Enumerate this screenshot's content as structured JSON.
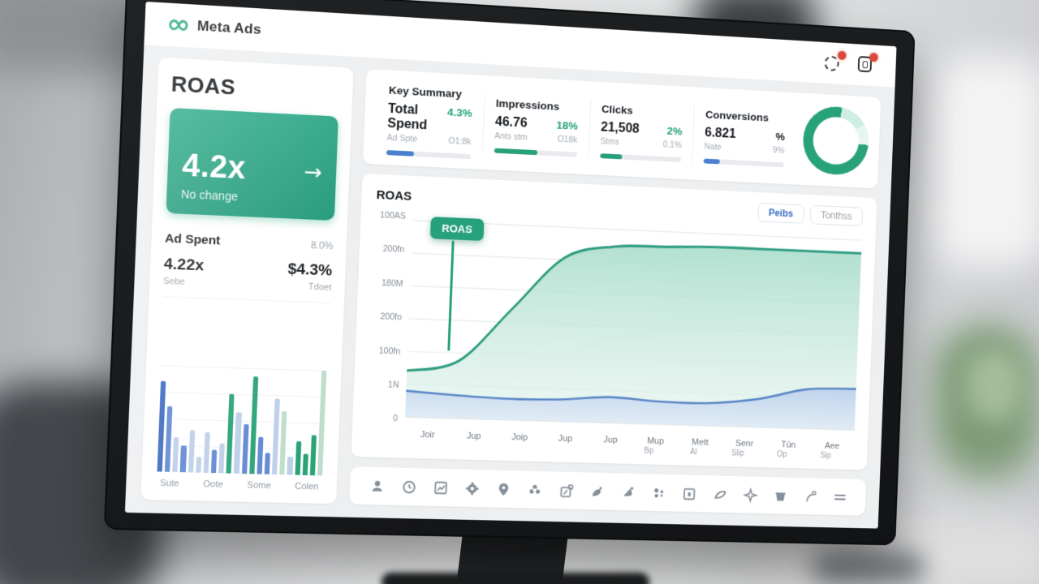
{
  "brand": {
    "name": "Meta Ads"
  },
  "header": {
    "icons": [
      {
        "name": "alerts-icon",
        "has_badge": true
      },
      {
        "name": "messages-icon",
        "has_badge": true
      }
    ]
  },
  "colors": {
    "accent_green": "#27a07c",
    "accent_blue": "#4a7fd0",
    "badge_red": "#d9473a",
    "text_dark": "#14181c",
    "text_grey": "#9aa3ad",
    "bar_palette": {
      "darkblue": "#3a68c0",
      "blue": "#6189d2",
      "paleblue": "#bdcfe9",
      "green": "#2aa376",
      "palegreen": "#bedecb"
    }
  },
  "roas_panel": {
    "title": "ROAS",
    "tile": {
      "value": "4.2x",
      "arrow": "→",
      "change_label": "No change"
    },
    "ad_spent": {
      "label": "Ad Spent",
      "pct": "8.0%",
      "left_value": "4.22x",
      "left_caption": "Sebe",
      "right_value": "$4.3%",
      "right_caption": "Tdoet"
    }
  },
  "summary": {
    "cards": [
      {
        "title": "Key Summary",
        "value": "Total Spend",
        "change": "4.3%",
        "change_color": "green",
        "sub_left": "Ad Spte",
        "sub_right": "O1:8k",
        "progress": 0.33,
        "bar_color": "blue"
      },
      {
        "title": "Impressions",
        "value": "46.76",
        "change": "18%",
        "change_color": "green",
        "sub_left": "Ants stm",
        "sub_right": "O18k",
        "progress": 0.52,
        "bar_color": "green"
      },
      {
        "title": "Clicks",
        "value": "21,508",
        "change": "2%",
        "change_color": "green",
        "sub_left": "Stms",
        "sub_right": "0.1%",
        "progress": 0.27,
        "bar_color": "green"
      },
      {
        "title": "Conversions",
        "value": "6.821",
        "change": "%",
        "change_color": "dark",
        "sub_left": "Nate",
        "sub_right": "9%",
        "progress": 0.2,
        "bar_color": "blue"
      }
    ]
  },
  "main_chart": {
    "title": "ROAS",
    "buttons": [
      "Peibs",
      "Tonthss"
    ],
    "tooltip_label": "ROAS"
  },
  "toolbar": {
    "icons": [
      "user-icon",
      "clock-icon",
      "chart-box-icon",
      "gear-icon",
      "location-pin-icon",
      "flower-icon",
      "pin-chart-icon",
      "bird-icon",
      "megaphone-icon",
      "dots-icon",
      "calendar-icon",
      "swoosh-icon",
      "sparkle-icon",
      "basket-icon",
      "hook-icon",
      "menu-icon"
    ]
  },
  "chart_data": [
    {
      "type": "area",
      "title": "ROAS",
      "x": [
        "Joir",
        "Jup",
        "Joip",
        "Jup",
        "Jup",
        "Mup",
        "Mett",
        "Senr",
        "Tún",
        "Aee"
      ],
      "x_sub": [
        "",
        "",
        "",
        "",
        "",
        "Bp",
        "Al",
        "Slip",
        "Op",
        "Sip"
      ],
      "y_ticks": [
        "100AS",
        "200fn",
        "180M",
        "200fo",
        "100fn",
        "1N",
        "0"
      ],
      "ylim": [
        0,
        100
      ],
      "grid": true,
      "legend": "none",
      "tooltip": {
        "label": "ROAS",
        "x_index": 0
      },
      "series": [
        {
          "name": "ROAS",
          "color": "#2e9c80",
          "values": [
            24,
            30,
            58,
            86,
            93,
            94,
            95,
            95,
            95,
            95
          ]
        },
        {
          "name": "secondary",
          "color": "#5b87c7",
          "values": [
            13.5,
            12,
            11,
            11.5,
            13.5,
            12,
            12,
            15,
            21,
            22
          ]
        }
      ]
    },
    {
      "type": "bar",
      "title": "Ad Spent mini chart",
      "categories": [
        "Sute",
        "Oote",
        "Some",
        "Colen"
      ],
      "ylim": [
        0,
        100
      ],
      "values": [
        85,
        62,
        33,
        25,
        40,
        15,
        38,
        22,
        28,
        75,
        58,
        47,
        92,
        35,
        20,
        72,
        60,
        17,
        32,
        20,
        38,
        100
      ],
      "bar_colors": [
        "darkblue",
        "blue",
        "paleblue",
        "blue",
        "paleblue",
        "paleblue",
        "paleblue",
        "blue",
        "paleblue",
        "green",
        "paleblue",
        "blue",
        "green",
        "blue",
        "blue",
        "paleblue",
        "palegreen",
        "paleblue",
        "green",
        "green",
        "green",
        "palegreen"
      ]
    },
    {
      "type": "pie",
      "title": "Conversions donut",
      "donut": true,
      "slices": [
        {
          "value": 76,
          "color": "#28a27b"
        },
        {
          "value": 14,
          "color": "#cdeee0"
        },
        {
          "value": 10,
          "color": "#e8f6f0"
        }
      ]
    }
  ]
}
